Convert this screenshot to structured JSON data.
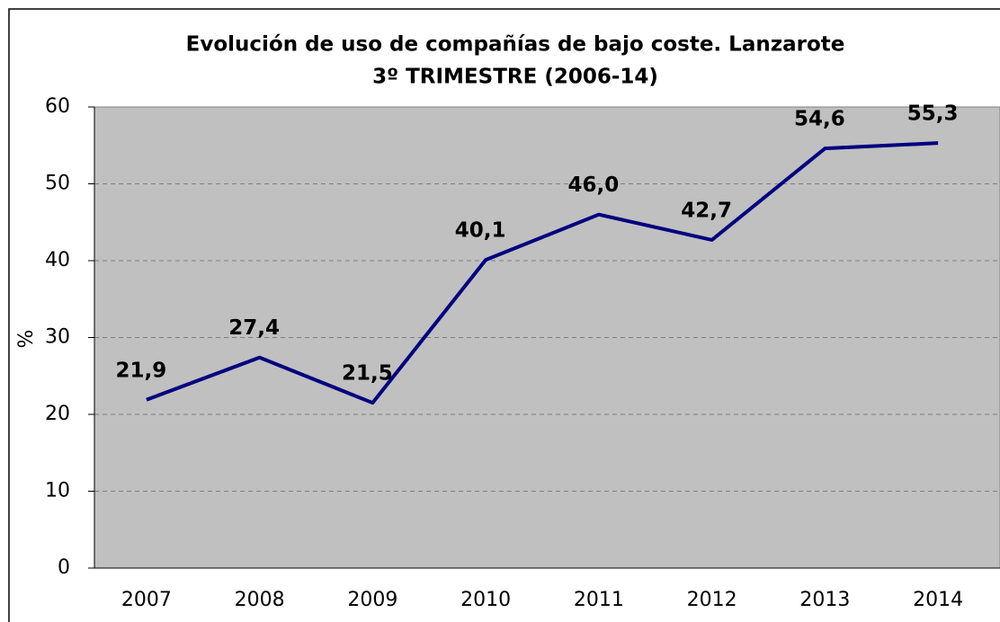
{
  "chart_data": {
    "type": "line",
    "title": "Evolución de uso de compañías de bajo coste. Lanzarote",
    "subtitle": "3º TRIMESTRE (2006-14)",
    "y_label": "%",
    "categories": [
      "2007",
      "2008",
      "2009",
      "2010",
      "2011",
      "2012",
      "2013",
      "2014"
    ],
    "series": [
      {
        "name": "Lanzarote",
        "color": "#000080",
        "values": [
          21.9,
          27.4,
          21.5,
          40.1,
          46.0,
          42.7,
          54.6,
          55.3
        ],
        "value_labels": [
          "21,9",
          "27,4",
          "21,5",
          "40,1",
          "46,0",
          "42,7",
          "54,6",
          "55,3"
        ]
      }
    ],
    "ylim": [
      0,
      60
    ],
    "yticks": [
      0,
      10,
      20,
      30,
      40,
      50,
      60
    ],
    "grid": true
  }
}
